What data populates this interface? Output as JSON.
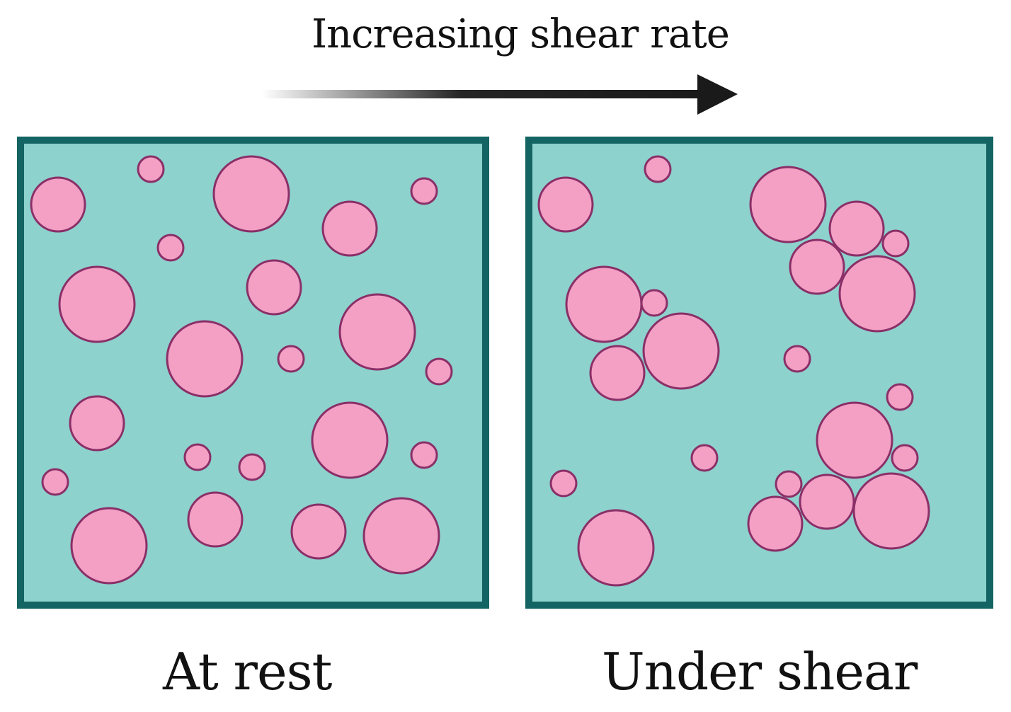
{
  "title": "Increasing shear rate",
  "colors": {
    "fluid": "#8dd2cd",
    "border": "#136462",
    "droplet_fill": "#f3a0c4",
    "droplet_stroke": "#8a2f68",
    "arrow": "#1a1a1a"
  },
  "panels": [
    {
      "id": "at-rest",
      "label": "At rest",
      "arrangement": "dispersed"
    },
    {
      "id": "under-shear",
      "label": "Under shear",
      "arrangement": "aggregated"
    }
  ]
}
